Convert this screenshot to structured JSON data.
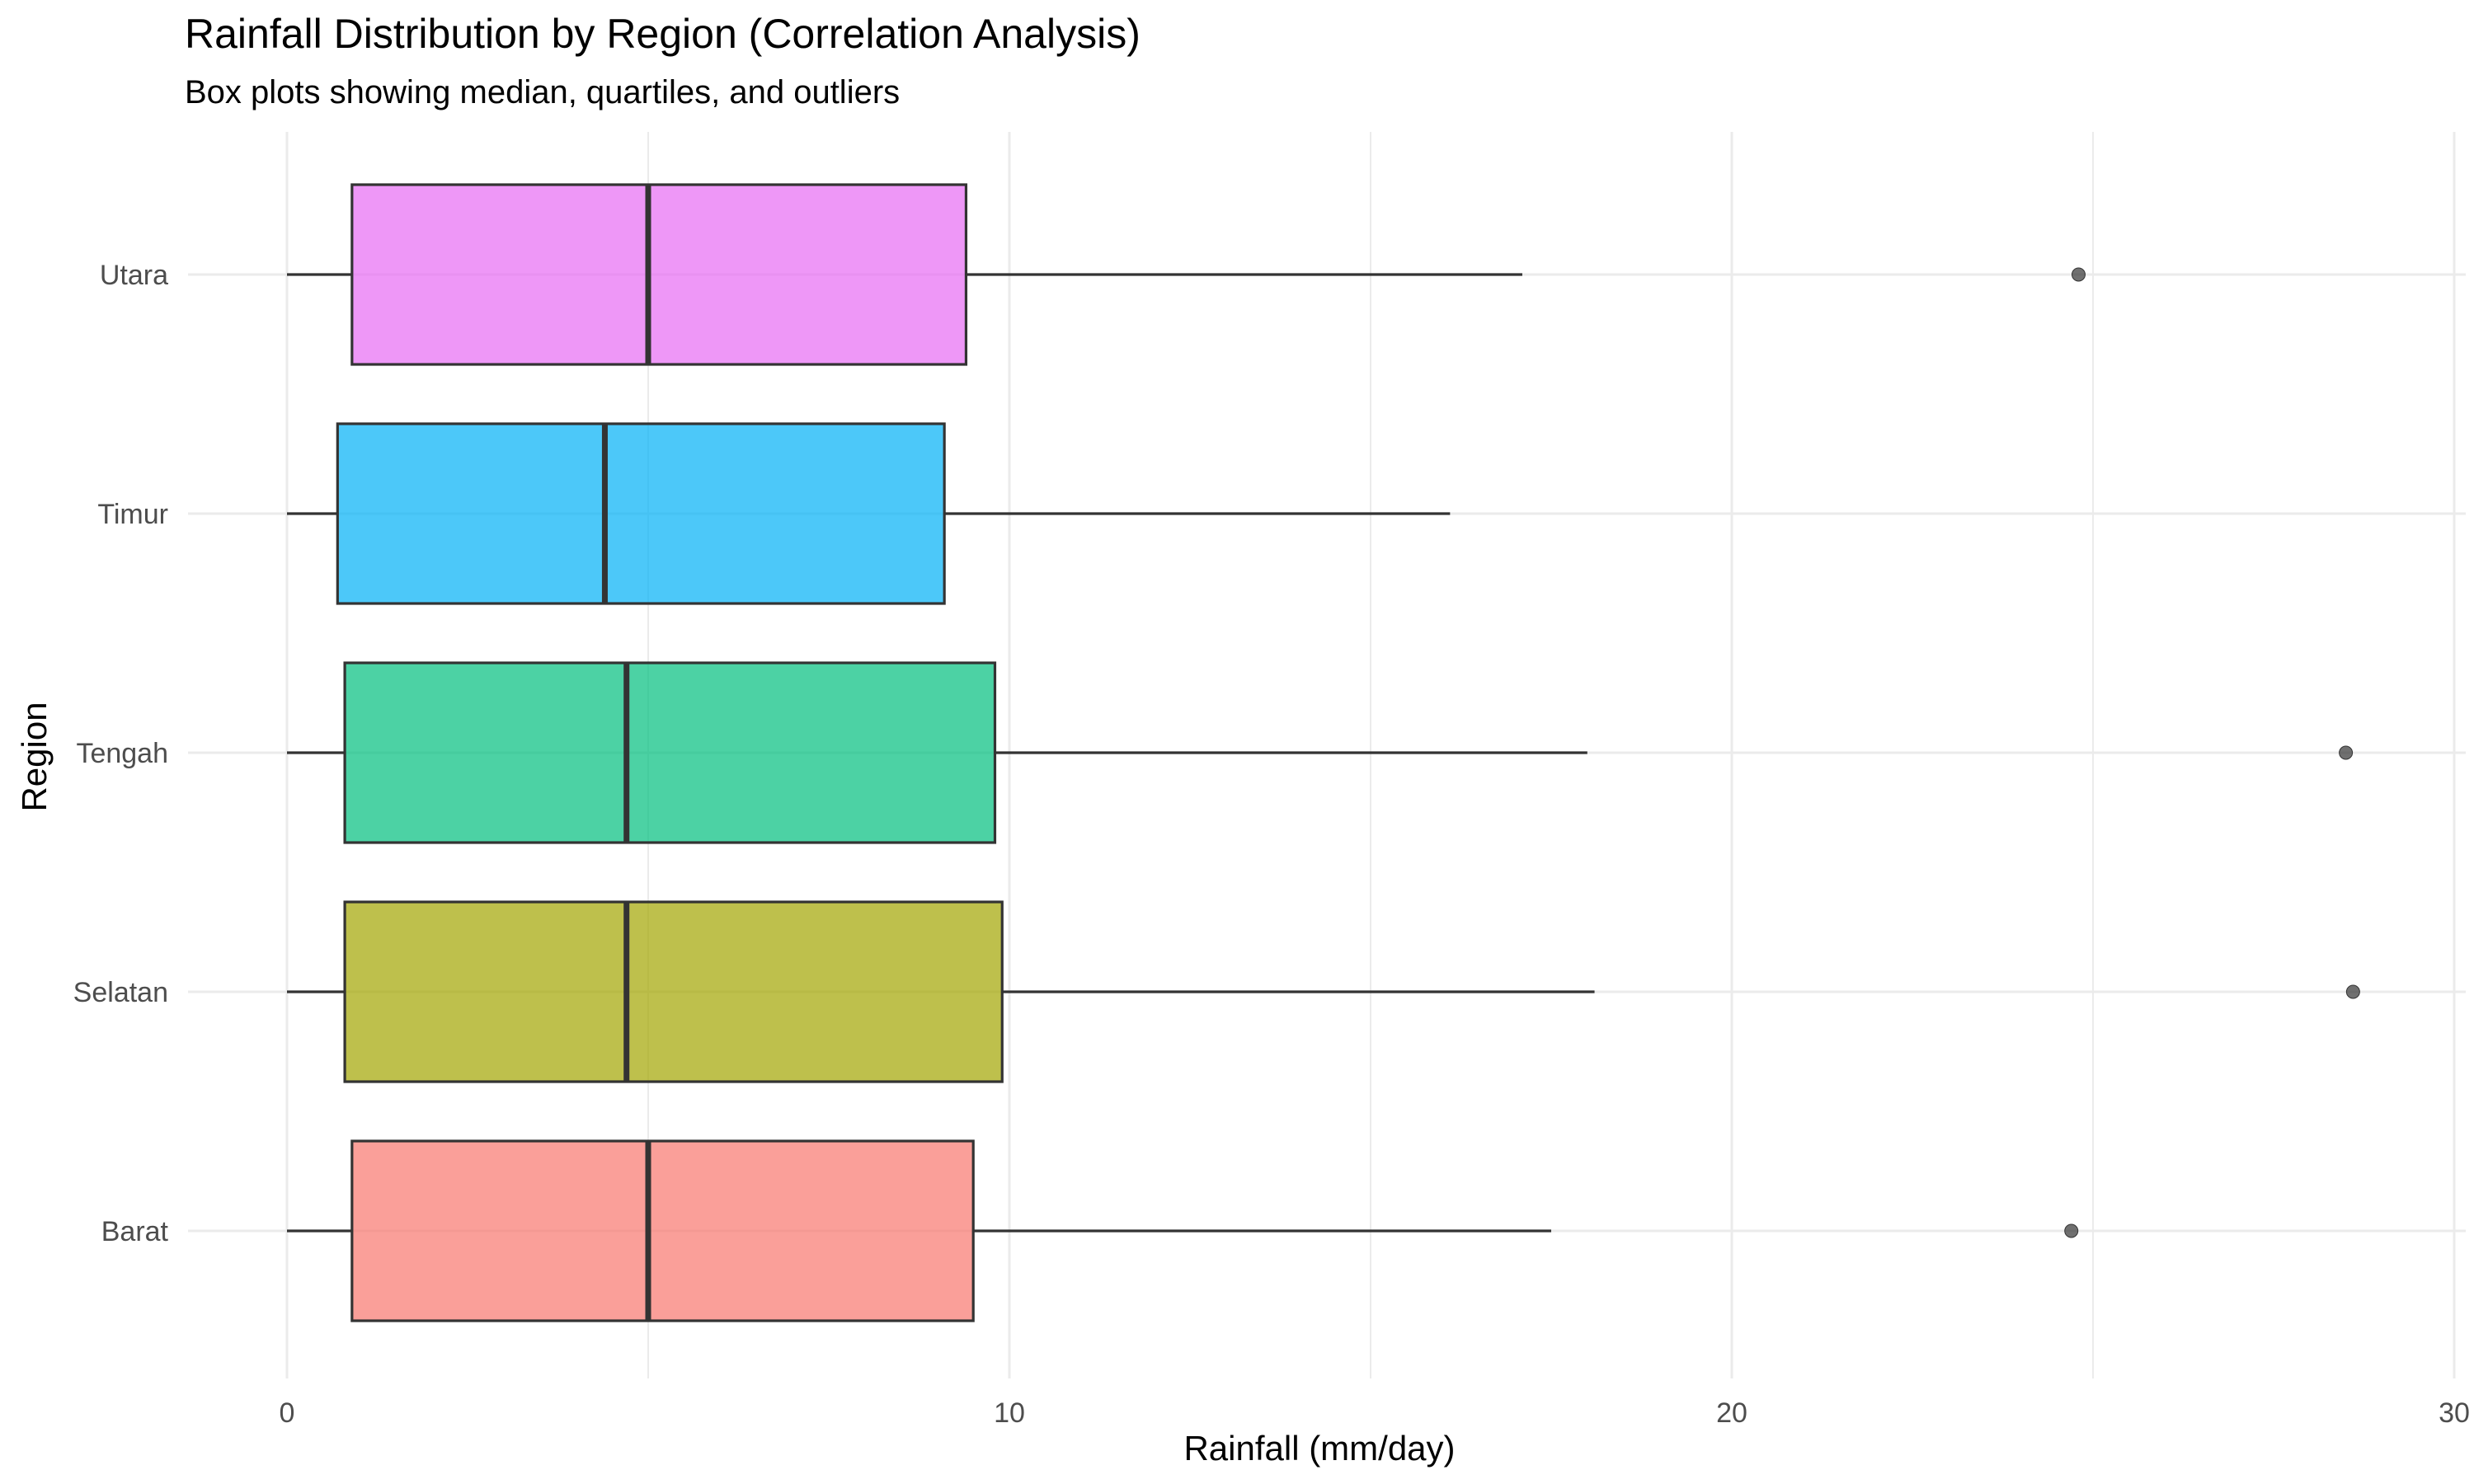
{
  "chart_data": {
    "type": "boxplot",
    "orientation": "horizontal",
    "title": "Rainfall Distribution by Region (Correlation Analysis)",
    "subtitle": "Box plots showing median, quartiles, and outliers",
    "xlabel": "Rainfall (mm/day)",
    "ylabel": "Region",
    "xlim": [
      -1,
      30
    ],
    "xticks": [
      0,
      10,
      20,
      30
    ],
    "grid": true,
    "legend": "none",
    "categories": [
      "Barat",
      "Selatan",
      "Tengah",
      "Timur",
      "Utara"
    ],
    "boxes": [
      {
        "region": "Barat",
        "whisker_low": 0,
        "q1": 0.9,
        "median": 5.0,
        "q3": 9.5,
        "whisker_high": 17.5,
        "outliers": [
          24.7
        ],
        "color": "#F8766D"
      },
      {
        "region": "Selatan",
        "whisker_low": 0,
        "q1": 0.8,
        "median": 4.7,
        "q3": 9.9,
        "whisker_high": 18.1,
        "outliers": [
          28.6
        ],
        "color": "#A3A500"
      },
      {
        "region": "Tengah",
        "whisker_low": 0,
        "q1": 0.8,
        "median": 4.7,
        "q3": 9.8,
        "whisker_high": 18.0,
        "outliers": [
          28.5
        ],
        "color": "#00BF7D"
      },
      {
        "region": "Timur",
        "whisker_low": 0,
        "q1": 0.7,
        "median": 4.4,
        "q3": 9.1,
        "whisker_high": 16.1,
        "outliers": [],
        "color": "#00B0F6"
      },
      {
        "region": "Utara",
        "whisker_low": 0,
        "q1": 0.9,
        "median": 5.0,
        "q3": 9.4,
        "whisker_high": 17.1,
        "outliers": [
          24.8
        ],
        "color": "#E76BF3"
      }
    ]
  }
}
